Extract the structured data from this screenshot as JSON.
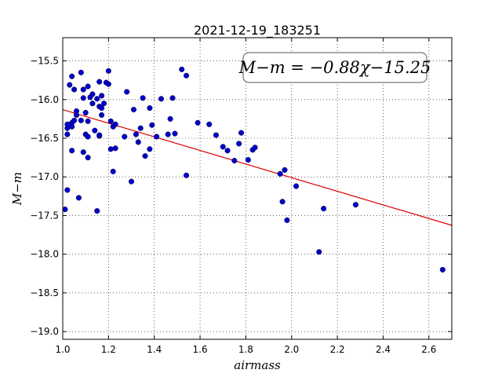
{
  "chart_data": {
    "type": "scatter",
    "title": "2021-12-19_183251",
    "xlabel": "airmass",
    "ylabel": "M−m",
    "xlim": [
      1.0,
      2.7
    ],
    "ylim": [
      -19.1,
      -15.2
    ],
    "xticks": [
      1.0,
      1.2,
      1.4,
      1.6,
      1.8,
      2.0,
      2.2,
      2.4,
      2.6
    ],
    "xtick_labels": [
      "1.0",
      "1.2",
      "1.4",
      "1.6",
      "1.8",
      "2.0",
      "2.2",
      "2.4",
      "2.6"
    ],
    "yticks": [
      -15.5,
      -16.0,
      -16.5,
      -17.0,
      -17.5,
      -18.0,
      -18.5,
      -19.0
    ],
    "ytick_labels": [
      "−15.5",
      "−16.0",
      "−16.5",
      "−17.0",
      "−17.5",
      "−18.0",
      "−18.5",
      "−19.0"
    ],
    "grid": true,
    "annotation": "M−m = −0.88χ−15.25",
    "fit": {
      "slope": -0.88,
      "intercept": -15.25,
      "x_range": [
        1.0,
        2.7
      ],
      "color": "#dd0000"
    },
    "marker_color": "#0000cc",
    "points": [
      [
        1.01,
        -17.42
      ],
      [
        1.02,
        -17.17
      ],
      [
        1.02,
        -16.37
      ],
      [
        1.02,
        -16.32
      ],
      [
        1.02,
        -16.45
      ],
      [
        1.03,
        -15.81
      ],
      [
        1.04,
        -15.7
      ],
      [
        1.04,
        -16.3
      ],
      [
        1.04,
        -16.35
      ],
      [
        1.04,
        -16.66
      ],
      [
        1.05,
        -15.87
      ],
      [
        1.05,
        -16.27
      ],
      [
        1.06,
        -16.15
      ],
      [
        1.06,
        -16.2
      ],
      [
        1.07,
        -17.27
      ],
      [
        1.08,
        -15.65
      ],
      [
        1.08,
        -16.27
      ],
      [
        1.09,
        -15.87
      ],
      [
        1.09,
        -15.98
      ],
      [
        1.09,
        -16.68
      ],
      [
        1.1,
        -16.17
      ],
      [
        1.1,
        -16.45
      ],
      [
        1.11,
        -15.83
      ],
      [
        1.11,
        -16.28
      ],
      [
        1.11,
        -16.48
      ],
      [
        1.11,
        -16.75
      ],
      [
        1.12,
        -15.97
      ],
      [
        1.13,
        -15.93
      ],
      [
        1.13,
        -16.05
      ],
      [
        1.14,
        -16.4
      ],
      [
        1.15,
        -15.99
      ],
      [
        1.15,
        -17.44
      ],
      [
        1.16,
        -16.09
      ],
      [
        1.16,
        -16.47
      ],
      [
        1.16,
        -16.46
      ],
      [
        1.16,
        -15.77
      ],
      [
        1.17,
        -15.95
      ],
      [
        1.17,
        -16.11
      ],
      [
        1.17,
        -16.2
      ],
      [
        1.18,
        -16.05
      ],
      [
        1.19,
        -15.78
      ],
      [
        1.2,
        -15.8
      ],
      [
        1.2,
        -15.63
      ],
      [
        1.21,
        -16.28
      ],
      [
        1.21,
        -16.64
      ],
      [
        1.22,
        -16.35
      ],
      [
        1.22,
        -16.93
      ],
      [
        1.23,
        -16.32
      ],
      [
        1.23,
        -16.63
      ],
      [
        1.27,
        -16.48
      ],
      [
        1.28,
        -15.9
      ],
      [
        1.3,
        -17.06
      ],
      [
        1.31,
        -16.13
      ],
      [
        1.32,
        -16.45
      ],
      [
        1.33,
        -16.55
      ],
      [
        1.34,
        -16.37
      ],
      [
        1.35,
        -15.98
      ],
      [
        1.36,
        -16.73
      ],
      [
        1.38,
        -16.11
      ],
      [
        1.38,
        -16.64
      ],
      [
        1.39,
        -16.33
      ],
      [
        1.41,
        -16.48
      ],
      [
        1.43,
        -15.99
      ],
      [
        1.46,
        -16.45
      ],
      [
        1.47,
        -16.25
      ],
      [
        1.48,
        -15.98
      ],
      [
        1.49,
        -16.44
      ],
      [
        1.52,
        -15.61
      ],
      [
        1.54,
        -15.69
      ],
      [
        1.54,
        -16.98
      ],
      [
        1.59,
        -16.3
      ],
      [
        1.64,
        -16.32
      ],
      [
        1.67,
        -16.46
      ],
      [
        1.7,
        -16.61
      ],
      [
        1.72,
        -16.66
      ],
      [
        1.75,
        -16.79
      ],
      [
        1.77,
        -16.57
      ],
      [
        1.78,
        -16.43
      ],
      [
        1.81,
        -16.78
      ],
      [
        1.83,
        -16.65
      ],
      [
        1.84,
        -16.62
      ],
      [
        1.95,
        -16.96
      ],
      [
        1.96,
        -17.32
      ],
      [
        1.97,
        -16.91
      ],
      [
        1.98,
        -17.56
      ],
      [
        2.02,
        -17.12
      ],
      [
        2.12,
        -17.97
      ],
      [
        2.14,
        -17.41
      ],
      [
        2.28,
        -17.36
      ],
      [
        2.66,
        -18.2
      ]
    ]
  }
}
